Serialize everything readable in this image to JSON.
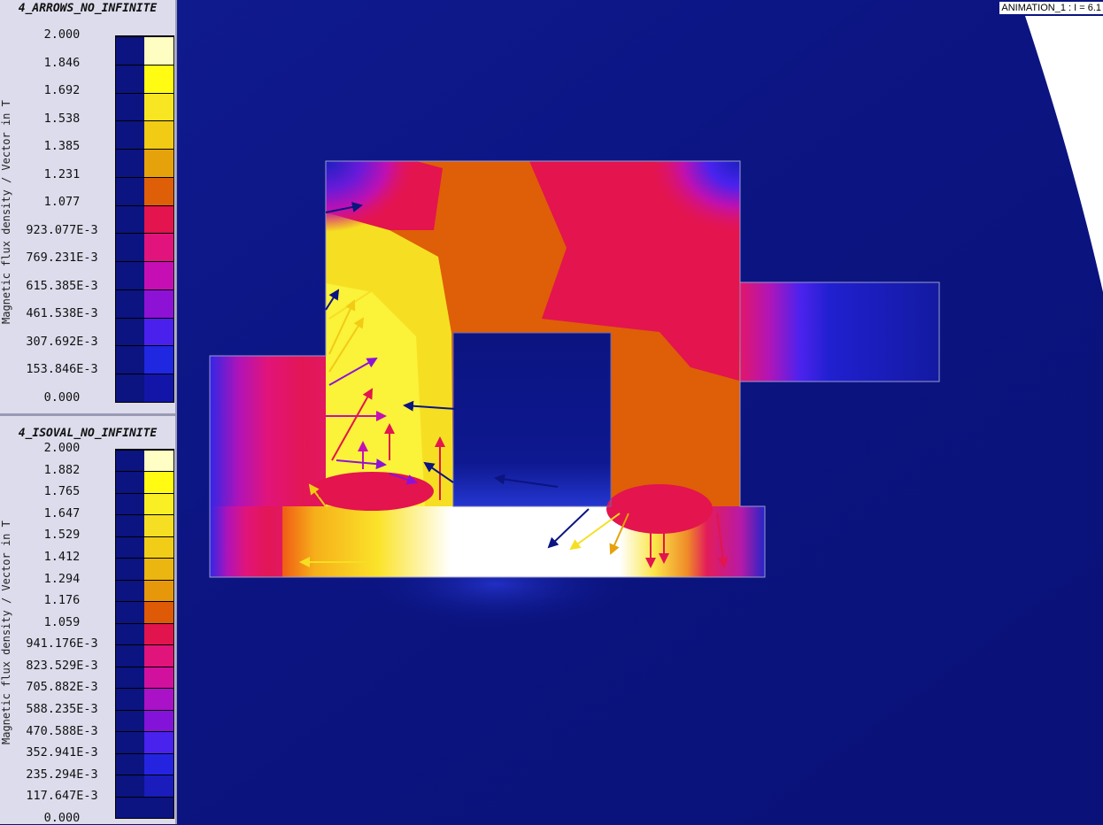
{
  "legend_top": {
    "title": "4_ARROWS_NO_INFINITE",
    "ylabel": "Magnetic flux density / Vector in T",
    "ticks": [
      "2.000",
      "1.846",
      "1.692",
      "1.538",
      "1.385",
      "1.231",
      "1.077",
      "923.077E-3",
      "769.231E-3",
      "615.385E-3",
      "461.538E-3",
      "307.692E-3",
      "153.846E-3",
      "0.000"
    ],
    "colors": [
      "#fffec2",
      "#fffb12",
      "#f9e622",
      "#f1cb14",
      "#e6a20a",
      "#df5e08",
      "#e3144e",
      "#e1147e",
      "#c50fb4",
      "#8e12d6",
      "#4a20ec",
      "#2027e0",
      "#1315a8"
    ]
  },
  "legend_bottom": {
    "title": "4_ISOVAL_NO_INFINITE",
    "ylabel": "Magnetic flux density / Vector in T",
    "ticks": [
      "2.000",
      "1.882",
      "1.765",
      "1.647",
      "1.529",
      "1.412",
      "1.294",
      "1.176",
      "1.059",
      "941.176E-3",
      "823.529E-3",
      "705.882E-3",
      "588.235E-3",
      "470.588E-3",
      "352.941E-3",
      "235.294E-3",
      "117.647E-3",
      "0.000"
    ],
    "colors": [
      "#fffec4",
      "#fffb12",
      "#faee24",
      "#f6df22",
      "#f1cd18",
      "#ebb610",
      "#e6980a",
      "#de5a06",
      "#e1144e",
      "#e0147a",
      "#d1119e",
      "#a912c6",
      "#8313d8",
      "#4a22ee",
      "#2424e0",
      "#1a1cbc",
      "#0b1480"
    ]
  },
  "animation_label": "ANIMATION_1 : I = 6.1",
  "colors": {
    "background": "#0b1480",
    "panel": "#dcdcec"
  }
}
